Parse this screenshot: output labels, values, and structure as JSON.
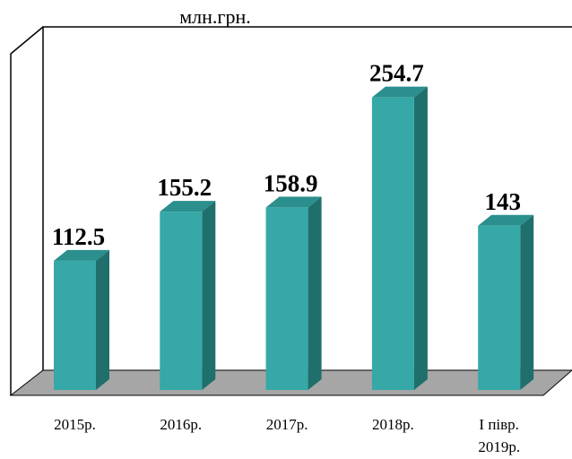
{
  "chart_data": {
    "type": "bar3d",
    "title": "млн.грн.",
    "categories": [
      "2015р.",
      "2016р.",
      "2017р.",
      "2018р.",
      "І півр.\n2019р."
    ],
    "values": [
      112.5,
      155.2,
      158.9,
      254.7,
      143
    ],
    "color": "#35a8a7",
    "ylim": [
      0,
      320
    ]
  }
}
